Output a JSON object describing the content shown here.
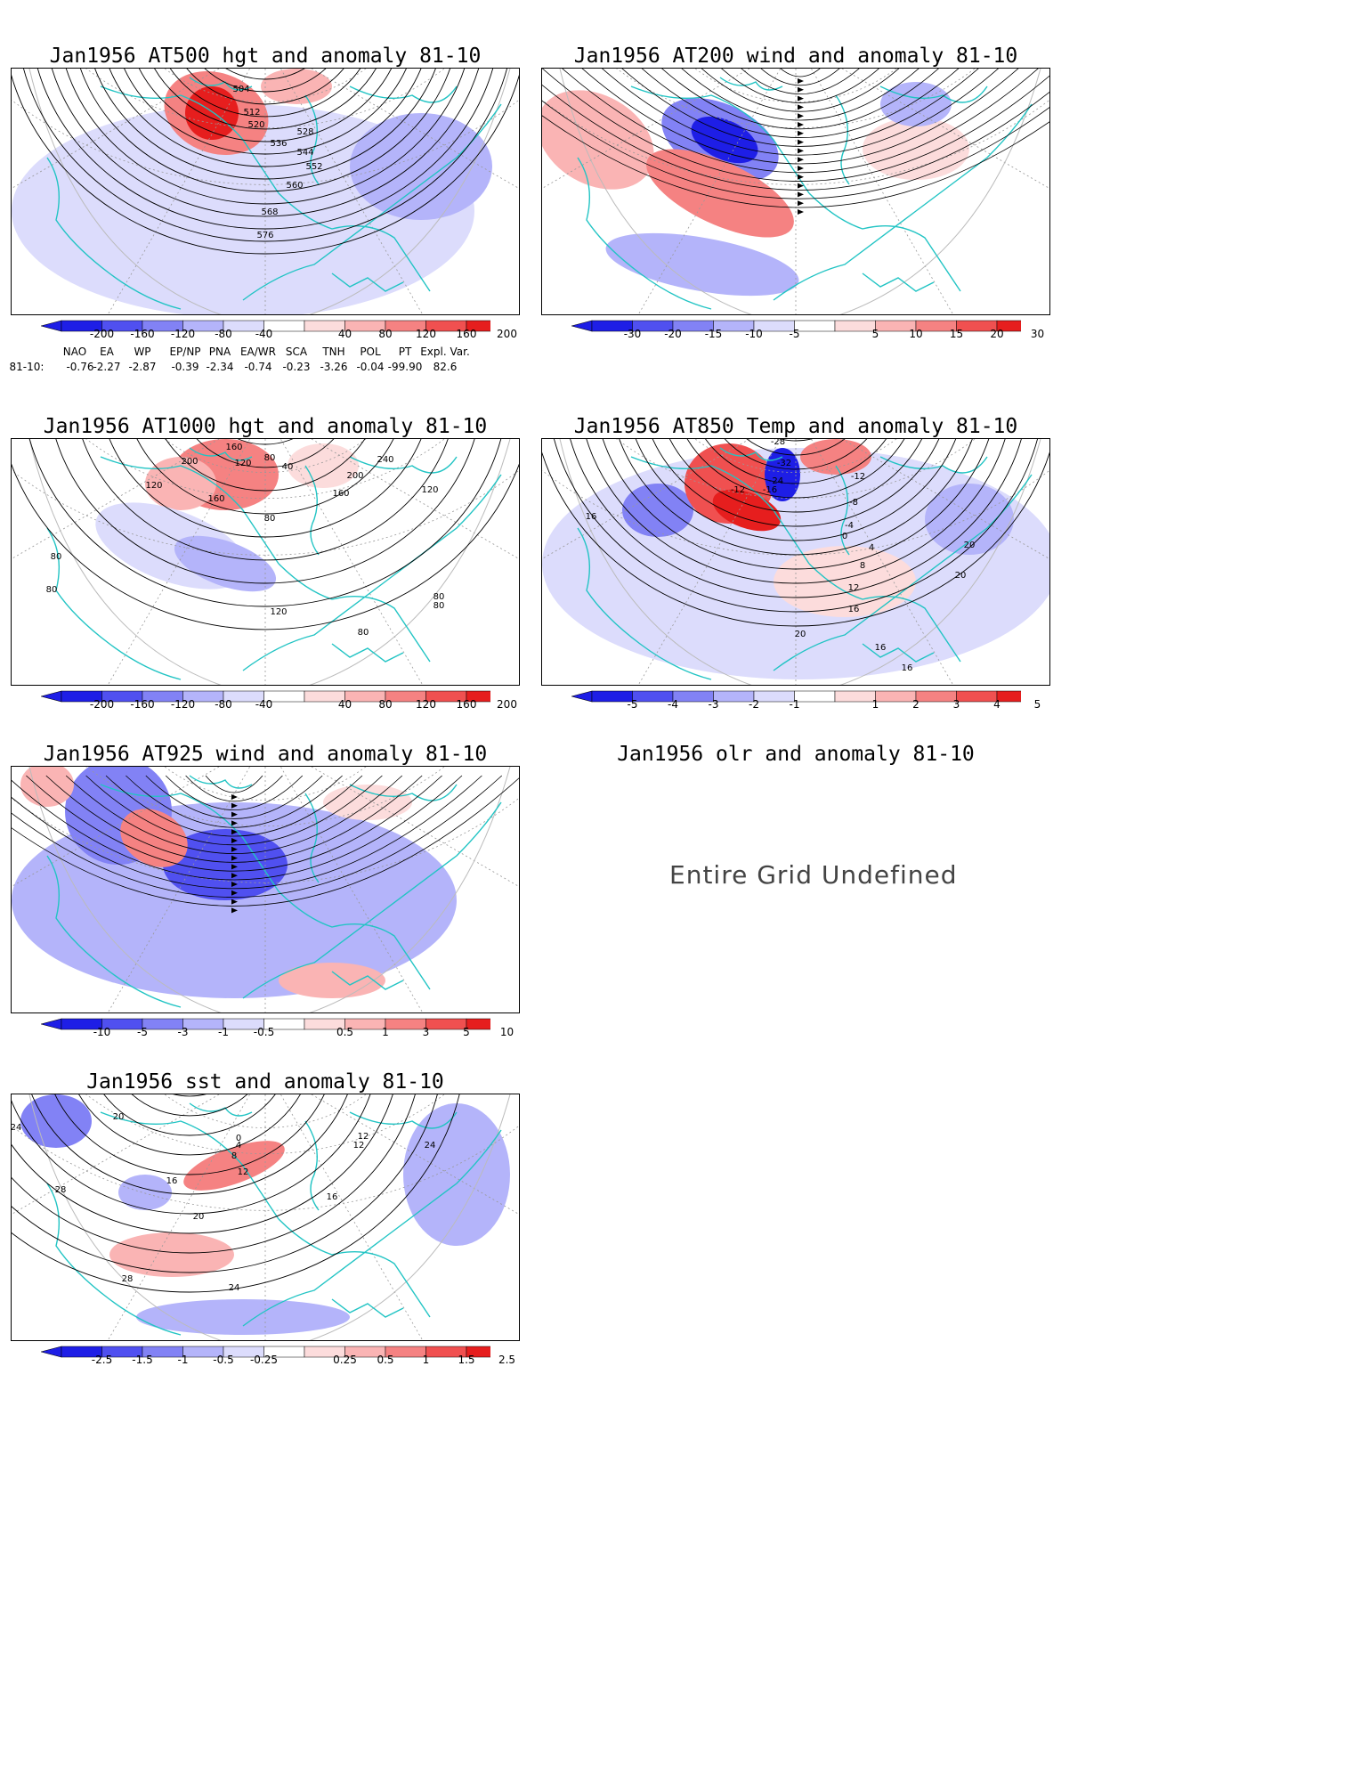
{
  "panels": [
    {
      "id": "p1",
      "title": "Jan1956 AT500 hgt and anomaly 81-10",
      "contour_labels": [
        "504",
        "512",
        "520",
        "528",
        "536",
        "544",
        "552",
        "560",
        "568",
        "576"
      ],
      "colorbar": [
        "-200",
        "-160",
        "-120",
        "-80",
        "-40",
        "40",
        "80",
        "120",
        "160",
        "200"
      ]
    },
    {
      "id": "p2",
      "title": "Jan1956 AT200 wind and anomaly 81-10",
      "colorbar": [
        "-30",
        "-20",
        "-15",
        "-10",
        "-5",
        "5",
        "10",
        "15",
        "20",
        "30"
      ]
    },
    {
      "id": "p3",
      "title": "Jan1956 AT1000 hgt and anomaly 81-10",
      "contour_labels": [
        "200",
        "160",
        "120",
        "80",
        "40",
        "240",
        "200",
        "160",
        "120",
        "80",
        "120",
        "160",
        "80",
        "80",
        "120",
        "80",
        "80",
        "80"
      ],
      "colorbar": [
        "-200",
        "-160",
        "-120",
        "-80",
        "-40",
        "40",
        "80",
        "120",
        "160",
        "200"
      ]
    },
    {
      "id": "p4",
      "title": "Jan1956 AT850 Temp and anomaly 81-10",
      "contour_labels": [
        "-28",
        "-32",
        "-24",
        "-16",
        "-12",
        "-12",
        "-8",
        "-4",
        "0",
        "4",
        "8",
        "12",
        "16",
        "16",
        "20",
        "20",
        "20",
        "16",
        "16"
      ],
      "colorbar": [
        "-5",
        "-4",
        "-3",
        "-2",
        "-1",
        "1",
        "2",
        "3",
        "4",
        "5"
      ]
    },
    {
      "id": "p5",
      "title": "Jan1956 AT925 wind and anomaly 81-10",
      "colorbar": [
        "-10",
        "-5",
        "-3",
        "-1",
        "-0.5",
        "0.5",
        "1",
        "3",
        "5",
        "10"
      ]
    },
    {
      "id": "p6",
      "title": "Jan1956 olr and anomaly 81-10",
      "message": "Entire Grid Undefined"
    },
    {
      "id": "p7",
      "title": "Jan1956 sst and anomaly 81-10",
      "contour_labels": [
        "20",
        "24",
        "28",
        "16",
        "12",
        "8",
        "4",
        "0",
        "12",
        "16",
        "20",
        "24",
        "28",
        "24",
        "12"
      ],
      "colorbar": [
        "-2.5",
        "-1.5",
        "-1",
        "-0.5",
        "-0.25",
        "0.25",
        "0.5",
        "1",
        "1.5",
        "2.5"
      ]
    }
  ],
  "teleconnection": {
    "header": [
      "NAO",
      "EA",
      "WP",
      "EP/NP",
      "PNA",
      "EA/WR",
      "SCA",
      "TNH",
      "POL",
      "PT",
      "Expl. Var."
    ],
    "row_label": "81-10:",
    "values": [
      "-0.76",
      "-2.27",
      "-2.87",
      "-0.39",
      "-2.34",
      "-0.74",
      "-0.23",
      "-3.26",
      "-0.04",
      "-99.90",
      "82.6"
    ]
  },
  "colors": {
    "coast": "#22c4c4",
    "blue_scale": [
      "#1e1ee6",
      "#5050f0",
      "#8282f5",
      "#b4b4fa",
      "#dcdcfc"
    ],
    "red_scale": [
      "#fcdcdc",
      "#fab4b4",
      "#f58282",
      "#f05050",
      "#e61e1e"
    ]
  }
}
